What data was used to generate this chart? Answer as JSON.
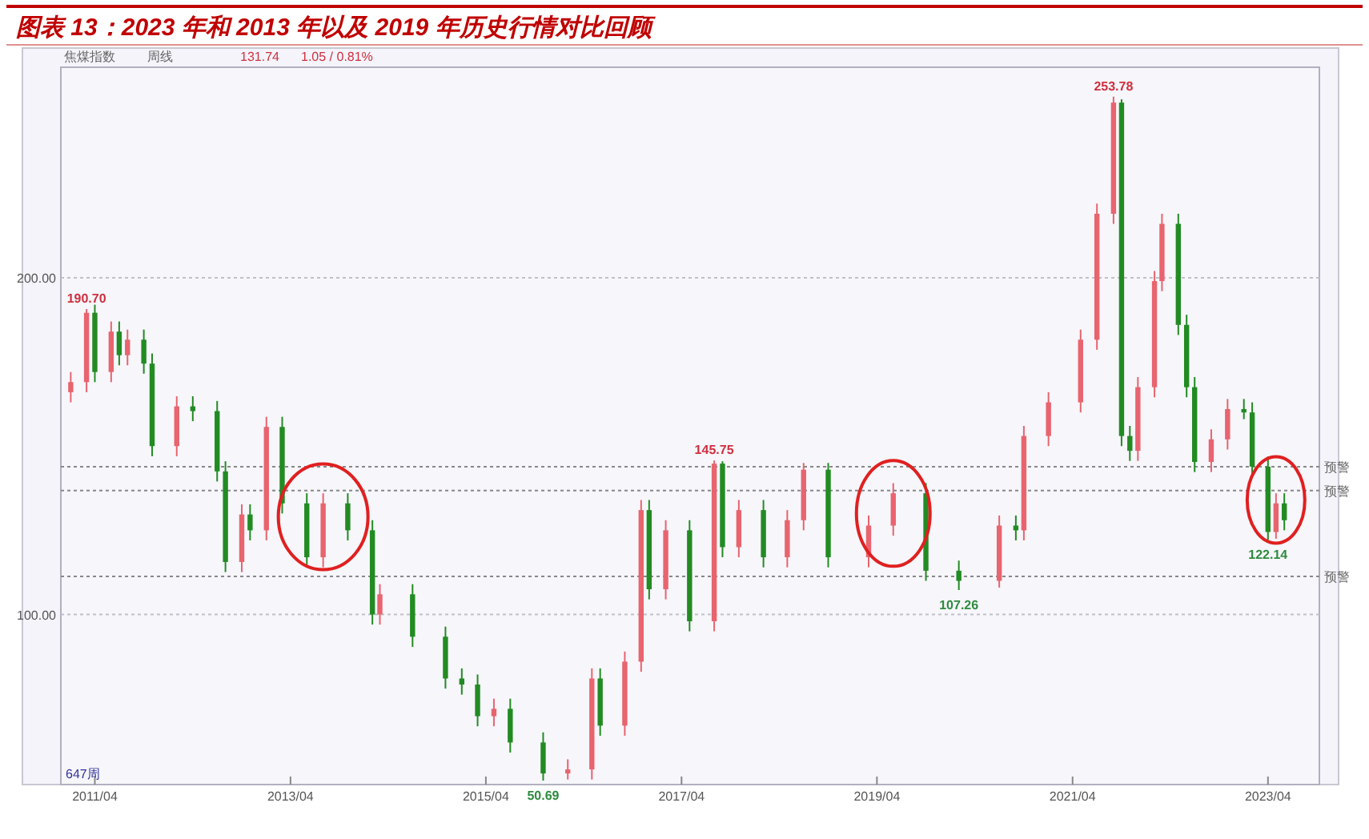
{
  "chart_data": {
    "type": "candlestick",
    "title": "图表 13：2023 年和 2013 年以及 2019 年历史行情对比回顾",
    "x": [
      "2011-01",
      "2011-03",
      "2011-04",
      "2011-06",
      "2011-07",
      "2011-08",
      "2011-10",
      "2011-11",
      "2012-02",
      "2012-04",
      "2012-07",
      "2012-08",
      "2012-10",
      "2012-11",
      "2013-01",
      "2013-03",
      "2013-06",
      "2013-08",
      "2013-11",
      "2014-02",
      "2014-03",
      "2014-07",
      "2014-11",
      "2015-01",
      "2015-03",
      "2015-05",
      "2015-07",
      "2015-11",
      "2016-02",
      "2016-05",
      "2016-06",
      "2016-09",
      "2016-11",
      "2016-12",
      "2017-02",
      "2017-05",
      "2017-08",
      "2017-09",
      "2017-11",
      "2018-02",
      "2018-05",
      "2018-07",
      "2018-10",
      "2019-03",
      "2019-06",
      "2019-10",
      "2020-02",
      "2020-07",
      "2020-09",
      "2020-10",
      "2021-01",
      "2021-05",
      "2021-07",
      "2021-09",
      "2021-10",
      "2021-11",
      "2021-12",
      "2022-02",
      "2022-03",
      "2022-05",
      "2022-06",
      "2022-07",
      "2022-09",
      "2022-11",
      "2023-01",
      "2023-02",
      "2023-04",
      "2023-05",
      "2023-06"
    ],
    "ohlc": [
      [
        166,
        172,
        163,
        169
      ],
      [
        169,
        190.7,
        166,
        189.6
      ],
      [
        189.6,
        192,
        169,
        172
      ],
      [
        172,
        187,
        169,
        184
      ],
      [
        184,
        187,
        174,
        177
      ],
      [
        177,
        184.6,
        174,
        181.6
      ],
      [
        181.6,
        184.6,
        171.5,
        174.5
      ],
      [
        174.5,
        177.5,
        147,
        150
      ],
      [
        150,
        164.8,
        147,
        161.8
      ],
      [
        161.8,
        164.8,
        157.4,
        160.4
      ],
      [
        160.4,
        163.4,
        139.5,
        142.5
      ],
      [
        142.5,
        145.5,
        112.6,
        115.6
      ],
      [
        115.6,
        132.7,
        112.6,
        129.7
      ],
      [
        129.7,
        132.7,
        122,
        125
      ],
      [
        125,
        158.7,
        122,
        155.7
      ],
      [
        155.7,
        158.7,
        130,
        133
      ],
      [
        133,
        136,
        114,
        117
      ],
      [
        117,
        136,
        114,
        133
      ],
      [
        133,
        136,
        122,
        125
      ],
      [
        125,
        128,
        97,
        100
      ],
      [
        100,
        109,
        97,
        106
      ],
      [
        106,
        109,
        90.4,
        93.4
      ],
      [
        93.4,
        96.4,
        78,
        81
      ],
      [
        81,
        84,
        76.2,
        79.2
      ],
      [
        79.2,
        82.2,
        66.8,
        69.8
      ],
      [
        69.8,
        75,
        66.8,
        72
      ],
      [
        72,
        75,
        59,
        62
      ],
      [
        62,
        65,
        50.69,
        52.8
      ],
      [
        52.8,
        57,
        51,
        54
      ],
      [
        54,
        84,
        51,
        81
      ],
      [
        81,
        84,
        64,
        67
      ],
      [
        67,
        89,
        64,
        86
      ],
      [
        86,
        134,
        83,
        131
      ],
      [
        131,
        134,
        104.5,
        107.5
      ],
      [
        107.5,
        128,
        104.5,
        125
      ],
      [
        125,
        128,
        95,
        98
      ],
      [
        98,
        145.75,
        95,
        144.8
      ],
      [
        144.8,
        145.5,
        117,
        120
      ],
      [
        120,
        134,
        117,
        131
      ],
      [
        131,
        134,
        114,
        117
      ],
      [
        117,
        131,
        114,
        128
      ],
      [
        128,
        145,
        125,
        143
      ],
      [
        143,
        145,
        114,
        117
      ],
      [
        117,
        129.4,
        114,
        126.4
      ],
      [
        126.4,
        139,
        123.4,
        136
      ],
      [
        136,
        139,
        110,
        113
      ],
      [
        113,
        116,
        107.26,
        110
      ],
      [
        110,
        129.4,
        108,
        126.4
      ],
      [
        126.4,
        129.4,
        122,
        125
      ],
      [
        125,
        156,
        122,
        153
      ],
      [
        153,
        166,
        150,
        163
      ],
      [
        163,
        184.6,
        160,
        181.6
      ],
      [
        181.6,
        222,
        178.6,
        219
      ],
      [
        219,
        253.78,
        216,
        252
      ],
      [
        252,
        253,
        150,
        153
      ],
      [
        153,
        156,
        145.6,
        148.6
      ],
      [
        148.6,
        170.5,
        145.6,
        167.5
      ],
      [
        167.5,
        202,
        164.5,
        199
      ],
      [
        199,
        219,
        196,
        216
      ],
      [
        216,
        219,
        183,
        186
      ],
      [
        186,
        189,
        164.5,
        167.5
      ],
      [
        167.5,
        170.5,
        142.3,
        145.3
      ],
      [
        145.3,
        155,
        142.3,
        152
      ],
      [
        152,
        164,
        149,
        161
      ],
      [
        161,
        164,
        158,
        160
      ],
      [
        160,
        163,
        140.9,
        143.9
      ],
      [
        143.9,
        146.9,
        122.14,
        124.5
      ],
      [
        124.5,
        136,
        122.5,
        133
      ],
      [
        133,
        136,
        125,
        128
      ]
    ],
    "colors": [
      "#e8646e",
      "#e8646e",
      "#228b22",
      "#e8646e",
      "#228b22",
      "#e8646e",
      "#228b22",
      "#228b22",
      "#e8646e",
      "#228b22",
      "#228b22",
      "#228b22",
      "#e8646e",
      "#228b22",
      "#e8646e",
      "#228b22",
      "#228b22",
      "#e8646e",
      "#228b22",
      "#228b22",
      "#e8646e",
      "#228b22",
      "#228b22",
      "#228b22",
      "#228b22",
      "#e8646e",
      "#228b22",
      "#228b22",
      "#e8646e",
      "#e8646e",
      "#228b22",
      "#e8646e",
      "#e8646e",
      "#228b22",
      "#e8646e",
      "#228b22",
      "#e8646e",
      "#228b22",
      "#e8646e",
      "#228b22",
      "#e8646e",
      "#e8646e",
      "#228b22",
      "#e8646e",
      "#e8646e",
      "#228b22",
      "#228b22",
      "#e8646e",
      "#228b22",
      "#e8646e",
      "#e8646e",
      "#e8646e",
      "#e8646e",
      "#e8646e",
      "#228b22",
      "#228b22",
      "#e8646e",
      "#e8646e",
      "#e8646e",
      "#228b22",
      "#228b22",
      "#228b22",
      "#e8646e",
      "#e8646e",
      "#228b22",
      "#228b22",
      "#228b22",
      "#e8646e",
      "#228b22"
    ],
    "xlim": [
      "2010-11-25",
      "2023-10-10"
    ],
    "xticks": [
      {
        "value": "2011-04",
        "label": "2011/04"
      },
      {
        "value": "2013-04",
        "label": "2013/04"
      },
      {
        "value": "2015-04",
        "label": "2015/04"
      },
      {
        "value": "2017-04",
        "label": "2017/04"
      },
      {
        "value": "2019-04",
        "label": "2019/04"
      },
      {
        "value": "2021-04",
        "label": "2021/04"
      },
      {
        "value": "2023-04",
        "label": "2023/04"
      }
    ],
    "ylim": [
      49.5,
      262.5
    ],
    "yticks": [
      {
        "value": 100,
        "label": "100.00"
      },
      {
        "value": 200,
        "label": "200.00"
      }
    ],
    "grid": "y",
    "ref_lines": [
      {
        "axis": "y",
        "value": 143.9,
        "label": "预警",
        "color": "#888888",
        "line_style": "dotted"
      },
      {
        "axis": "y",
        "value": 136.8,
        "label": "预警",
        "color": "#888888",
        "line_style": "dotted"
      },
      {
        "axis": "y",
        "value": 111.3,
        "label": "预警",
        "color": "#888888",
        "line_style": "dotted"
      }
    ],
    "annotations": [
      "焦煤指数",
      "周线",
      "131.74",
      "1.05 / 0.81%",
      "647周",
      {
        "text": "190.70",
        "x": "2011-03",
        "y": 190.7
      },
      {
        "text": "50.69",
        "x": "2015-11",
        "y": 50.69
      },
      {
        "text": "145.75",
        "x": "2017-08",
        "y": 145.75
      },
      {
        "text": "107.26",
        "x": "2020-02",
        "y": 107.26
      },
      {
        "text": "253.78",
        "x": "2021-09",
        "y": 253.78
      },
      {
        "text": "122.14",
        "x": "2023-04",
        "y": 122.14
      }
    ]
  }
}
